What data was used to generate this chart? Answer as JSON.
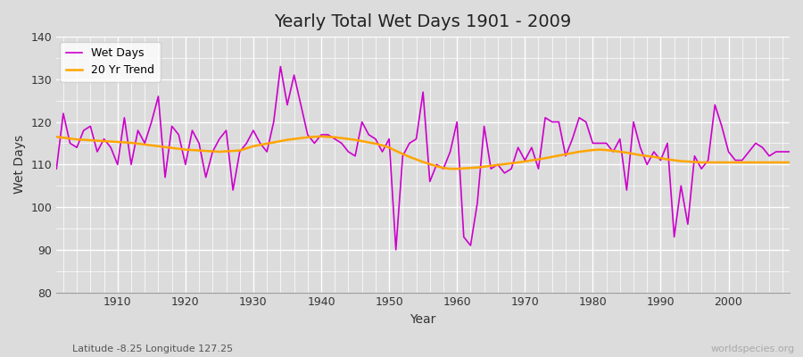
{
  "title": "Yearly Total Wet Days 1901 - 2009",
  "xlabel": "Year",
  "ylabel": "Wet Days",
  "subtitle": "Latitude -8.25 Longitude 127.25",
  "watermark": "worldspecies.org",
  "wet_days_color": "#cc00cc",
  "trend_color": "#FFA500",
  "background_color": "#dcdcdc",
  "fig_background": "#dcdcdc",
  "ylim": [
    80,
    140
  ],
  "xlim": [
    1901,
    2009
  ],
  "years": [
    1901,
    1902,
    1903,
    1904,
    1905,
    1906,
    1907,
    1908,
    1909,
    1910,
    1911,
    1912,
    1913,
    1914,
    1915,
    1916,
    1917,
    1918,
    1919,
    1920,
    1921,
    1922,
    1923,
    1924,
    1925,
    1926,
    1927,
    1928,
    1929,
    1930,
    1931,
    1932,
    1933,
    1934,
    1935,
    1936,
    1937,
    1938,
    1939,
    1940,
    1941,
    1942,
    1943,
    1944,
    1945,
    1946,
    1947,
    1948,
    1949,
    1950,
    1951,
    1952,
    1953,
    1954,
    1955,
    1956,
    1957,
    1958,
    1959,
    1960,
    1961,
    1962,
    1963,
    1964,
    1965,
    1966,
    1967,
    1968,
    1969,
    1970,
    1971,
    1972,
    1973,
    1974,
    1975,
    1976,
    1977,
    1978,
    1979,
    1980,
    1981,
    1982,
    1983,
    1984,
    1985,
    1986,
    1987,
    1988,
    1989,
    1990,
    1991,
    1992,
    1993,
    1994,
    1995,
    1996,
    1997,
    1998,
    1999,
    2000,
    2001,
    2002,
    2003,
    2004,
    2005,
    2006,
    2007,
    2008,
    2009
  ],
  "wet_days": [
    109,
    122,
    115,
    114,
    118,
    119,
    113,
    116,
    114,
    110,
    121,
    110,
    118,
    115,
    120,
    126,
    107,
    119,
    117,
    110,
    118,
    115,
    107,
    113,
    116,
    118,
    104,
    113,
    115,
    118,
    115,
    113,
    120,
    133,
    124,
    131,
    124,
    117,
    115,
    117,
    117,
    116,
    115,
    113,
    112,
    120,
    117,
    116,
    113,
    116,
    90,
    112,
    115,
    116,
    127,
    106,
    110,
    109,
    113,
    120,
    93,
    91,
    101,
    119,
    109,
    110,
    108,
    109,
    114,
    111,
    114,
    109,
    121,
    120,
    120,
    112,
    116,
    121,
    120,
    115,
    115,
    115,
    113,
    116,
    104,
    120,
    114,
    110,
    113,
    111,
    115,
    93,
    105,
    96,
    112,
    109,
    111,
    124,
    119,
    113,
    111,
    111,
    113,
    115,
    114,
    112,
    113,
    113,
    113
  ],
  "trend_values": [
    116.5,
    116.3,
    116.1,
    115.9,
    115.8,
    115.7,
    115.6,
    115.5,
    115.4,
    115.3,
    115.2,
    115.1,
    114.9,
    114.7,
    114.5,
    114.3,
    114.1,
    113.9,
    113.7,
    113.5,
    113.4,
    113.3,
    113.2,
    113.1,
    113.0,
    113.1,
    113.2,
    113.3,
    113.8,
    114.3,
    114.6,
    114.9,
    115.2,
    115.5,
    115.8,
    116.0,
    116.2,
    116.4,
    116.5,
    116.6,
    116.5,
    116.4,
    116.2,
    116.0,
    115.8,
    115.5,
    115.2,
    114.9,
    114.5,
    114.0,
    113.2,
    112.5,
    111.8,
    111.2,
    110.6,
    110.1,
    109.6,
    109.2,
    109.0,
    109.0,
    109.1,
    109.2,
    109.3,
    109.5,
    109.7,
    109.9,
    110.1,
    110.3,
    110.5,
    110.7,
    111.0,
    111.2,
    111.5,
    111.8,
    112.1,
    112.4,
    112.7,
    113.0,
    113.2,
    113.4,
    113.5,
    113.4,
    113.2,
    113.0,
    112.8,
    112.5,
    112.2,
    112.0,
    111.8,
    111.5,
    111.2,
    111.0,
    110.8,
    110.7,
    110.6,
    110.5,
    110.5,
    110.5,
    110.5,
    110.5,
    110.5,
    110.5,
    110.5,
    110.5,
    110.5,
    110.5,
    110.5,
    110.5,
    110.5
  ]
}
